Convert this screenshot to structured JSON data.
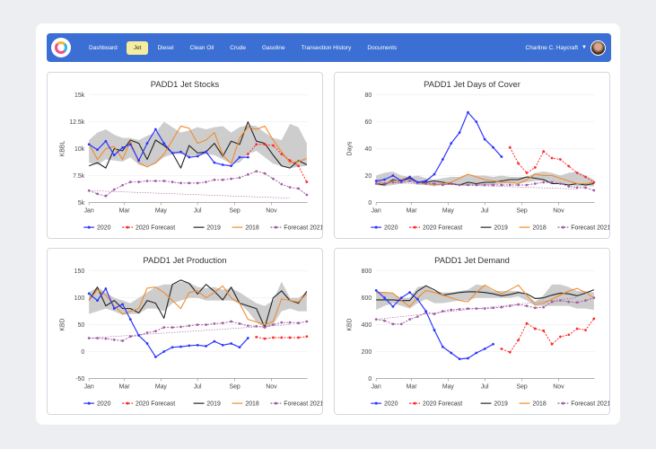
{
  "nav": {
    "items": [
      "Dashboard",
      "Jet",
      "Diesel",
      "Clean Oil",
      "Crude",
      "Gasoline",
      "Transection History",
      "Documents"
    ],
    "active": "Jet",
    "user": "Charline C. Haycraft",
    "brand_color": "#3b6fd3",
    "active_color": "#f4ec9f"
  },
  "legend": [
    "2020",
    "2020 Forecast",
    "2019",
    "2018",
    "Forecast 2021"
  ],
  "colors": {
    "2020": "#2b35ff",
    "2020 Forecast": "#ff2a2a",
    "2019": "#222222",
    "2018": "#f28a2a",
    "Forecast 2021": "#a25ca5",
    "band": "#c8c8c8"
  },
  "chart_data": [
    {
      "type": "line",
      "title": "PADD1 Jet Stocks",
      "ylabel": "KBBL",
      "xlabel": "",
      "ylim": [
        5000,
        15000
      ],
      "yticks": [
        5000,
        7500,
        10000,
        12500,
        15000
      ],
      "ytick_labels": [
        "5k",
        "7.5k",
        "10k",
        "12.5k",
        "15k"
      ],
      "xtick_labels": [
        "Jan",
        "Mar",
        "May",
        "Jul",
        "Sep",
        "Nov"
      ],
      "x": [
        "Jan 1",
        "Jan 15",
        "Jan 29",
        "Feb 12",
        "Feb 26",
        "Mar 11",
        "Mar 25",
        "Apr 8",
        "Apr 22",
        "May 6",
        "May 20",
        "Jun 3",
        "Jun 17",
        "Jul 1",
        "Jul 15",
        "Jul 29",
        "Aug 12",
        "Aug 26",
        "Sep 9",
        "Sep 23",
        "Oct 7",
        "Oct 21",
        "Nov 4",
        "Nov 18",
        "Dec 2",
        "Dec 16",
        "Dec 30"
      ],
      "series": [
        {
          "name": "2020",
          "values": [
            10400,
            9900,
            10700,
            9400,
            10100,
            10400,
            8900,
            10500,
            11800,
            10500,
            9600,
            9700,
            9200,
            9300,
            9700,
            8700,
            8500,
            8400,
            9200,
            9200,
            null,
            null,
            null,
            null,
            null,
            null,
            null
          ]
        },
        {
          "name": "2020 Forecast",
          "values": [
            null,
            null,
            null,
            null,
            null,
            null,
            null,
            null,
            null,
            null,
            null,
            null,
            null,
            null,
            null,
            null,
            null,
            null,
            null,
            9500,
            10400,
            10400,
            10300,
            9500,
            8900,
            8400,
            6900
          ]
        },
        {
          "name": "2019",
          "values": [
            8400,
            8700,
            8200,
            10000,
            9800,
            10800,
            10500,
            9000,
            10800,
            10300,
            9600,
            8200,
            10300,
            9600,
            9700,
            10500,
            9300,
            10700,
            10400,
            12500,
            10700,
            10500,
            9400,
            8400,
            8200,
            8900,
            8500
          ]
        },
        {
          "name": "2018",
          "values": [
            10500,
            9000,
            10000,
            10200,
            9000,
            10700,
            8700,
            8300,
            8700,
            9500,
            10800,
            12100,
            11900,
            10500,
            10800,
            11500,
            9400,
            8600,
            11000,
            12000,
            11800,
            12100,
            10800,
            9700,
            8700,
            8800,
            9100
          ]
        },
        {
          "name": "Forecast 2021",
          "values": [
            6100,
            5800,
            5600,
            6200,
            6600,
            6900,
            6900,
            7000,
            7000,
            7000,
            6900,
            6800,
            6800,
            6800,
            6900,
            7100,
            7100,
            7200,
            7300,
            7600,
            7900,
            7700,
            7200,
            6700,
            6400,
            6300,
            5700
          ]
        }
      ],
      "band_high": [
        10800,
        11500,
        11800,
        11300,
        11000,
        11000,
        10800,
        11200,
        11500,
        12500,
        12000,
        11500,
        11700,
        12000,
        11800,
        12000,
        12100,
        11500,
        12000,
        12200,
        12100,
        11500,
        11000,
        10800,
        12300,
        12000,
        10500
      ],
      "band_low": [
        8700,
        8500,
        9000,
        8900,
        8800,
        9200,
        8500,
        8300,
        8600,
        9200,
        9500,
        9500,
        9300,
        9400,
        9500,
        9400,
        9000,
        8600,
        8700,
        9500,
        9800,
        9200,
        8600,
        8400,
        8200,
        8300,
        8400
      ],
      "trend": [
        6100,
        5400
      ]
    },
    {
      "type": "line",
      "title": "PADD1 Jet Days of Cover",
      "ylabel": "Days",
      "xlabel": "",
      "ylim": [
        0,
        80
      ],
      "yticks": [
        0,
        20,
        40,
        60,
        80
      ],
      "ytick_labels": [
        "0",
        "20",
        "40",
        "60",
        "80"
      ],
      "xtick_labels": [
        "Jan",
        "Mar",
        "May",
        "Jul",
        "Sep",
        "Nov"
      ],
      "x": [
        "Jan 1",
        "Jan 15",
        "Jan 29",
        "Feb 12",
        "Feb 26",
        "Mar 11",
        "Mar 25",
        "Apr 8",
        "Apr 22",
        "May 6",
        "May 20",
        "Jun 3",
        "Jun 17",
        "Jul 1",
        "Jul 15",
        "Jul 29",
        "Aug 12",
        "Aug 26",
        "Sep 9",
        "Sep 23",
        "Oct 7",
        "Oct 21",
        "Nov 4",
        "Nov 18",
        "Dec 2",
        "Dec 16",
        "Dec 30"
      ],
      "series": [
        {
          "name": "2020",
          "values": [
            16,
            17,
            20,
            16,
            19,
            15,
            16,
            21,
            32,
            44,
            52,
            67,
            60,
            47,
            41,
            34,
            null,
            null,
            null,
            null,
            null,
            null,
            null,
            null,
            null,
            null,
            null
          ]
        },
        {
          "name": "2020 Forecast",
          "values": [
            null,
            null,
            null,
            null,
            null,
            null,
            null,
            null,
            null,
            null,
            null,
            null,
            null,
            null,
            null,
            null,
            41,
            29,
            22,
            26,
            38,
            33,
            32,
            27,
            22,
            19,
            15
          ]
        },
        {
          "name": "2019",
          "values": [
            14,
            13,
            17,
            16,
            18,
            15,
            15,
            16,
            15,
            14,
            13,
            15,
            14,
            15,
            15,
            16,
            17,
            17,
            19,
            18,
            17,
            14,
            14,
            13,
            14,
            13,
            14
          ]
        },
        {
          "name": "2018",
          "values": [
            16,
            14,
            16,
            17,
            19,
            15,
            14,
            13,
            14,
            15,
            18,
            21,
            19,
            17,
            16,
            15,
            15,
            14,
            17,
            21,
            20,
            20,
            18,
            16,
            14,
            14,
            15
          ]
        },
        {
          "name": "Forecast 2021",
          "values": [
            14,
            14,
            15,
            15,
            16,
            15,
            14,
            14,
            13,
            14,
            13,
            13,
            13,
            13,
            13,
            13,
            13,
            13,
            13,
            14,
            15,
            15,
            14,
            12,
            11,
            11,
            9
          ]
        }
      ],
      "band_high": [
        20,
        22,
        23,
        20,
        19,
        20,
        18,
        17,
        18,
        19,
        19,
        21,
        20,
        20,
        19,
        20,
        19,
        19,
        19,
        22,
        23,
        22,
        20,
        22,
        23,
        20,
        17
      ],
      "band_low": [
        13,
        12,
        13,
        14,
        15,
        13,
        13,
        12,
        13,
        13,
        13,
        13,
        13,
        13,
        13,
        14,
        14,
        14,
        15,
        16,
        16,
        15,
        14,
        13,
        12,
        12,
        12
      ],
      "trend": [
        15,
        10
      ]
    },
    {
      "type": "line",
      "title": "PADD1 Jet Production",
      "ylabel": "KBD",
      "xlabel": "",
      "ylim": [
        -50,
        150
      ],
      "yticks": [
        -50,
        0,
        50,
        100,
        150
      ],
      "ytick_labels": [
        "-50",
        "0",
        "50",
        "100",
        "150"
      ],
      "xtick_labels": [
        "Jan",
        "Mar",
        "May",
        "Jul",
        "Sep",
        "Nov"
      ],
      "x": [
        "Jan 1",
        "Jan 15",
        "Jan 29",
        "Feb 12",
        "Feb 26",
        "Mar 11",
        "Mar 25",
        "Apr 8",
        "Apr 22",
        "May 6",
        "May 20",
        "Jun 3",
        "Jun 17",
        "Jul 1",
        "Jul 15",
        "Jul 29",
        "Aug 12",
        "Aug 26",
        "Sep 9",
        "Sep 23",
        "Oct 7",
        "Oct 21",
        "Nov 4",
        "Nov 18",
        "Dec 2",
        "Dec 16",
        "Dec 30"
      ],
      "series": [
        {
          "name": "2020",
          "values": [
            108,
            95,
            117,
            80,
            88,
            60,
            30,
            15,
            -10,
            0,
            8,
            9,
            11,
            12,
            10,
            19,
            12,
            15,
            8,
            25,
            null,
            null,
            null,
            null,
            null,
            null,
            null
          ]
        },
        {
          "name": "2020 Forecast",
          "values": [
            null,
            null,
            null,
            null,
            null,
            null,
            null,
            null,
            null,
            null,
            null,
            null,
            null,
            null,
            null,
            null,
            null,
            null,
            null,
            null,
            27,
            24,
            26,
            26,
            26,
            26,
            28
          ]
        },
        {
          "name": "2019",
          "values": [
            95,
            120,
            85,
            95,
            80,
            80,
            72,
            95,
            90,
            62,
            125,
            133,
            127,
            107,
            125,
            112,
            96,
            120,
            90,
            85,
            80,
            45,
            100,
            113,
            95,
            90,
            112
          ]
        },
        {
          "name": "2018",
          "values": [
            95,
            115,
            105,
            85,
            70,
            75,
            80,
            118,
            120,
            110,
            95,
            80,
            110,
            113,
            100,
            110,
            122,
            100,
            90,
            60,
            55,
            50,
            56,
            98,
            95,
            92,
            108
          ]
        },
        {
          "name": "Forecast 2021",
          "values": [
            25,
            25,
            24,
            22,
            20,
            28,
            30,
            35,
            38,
            45,
            45,
            46,
            48,
            50,
            50,
            52,
            53,
            56,
            52,
            48,
            47,
            45,
            50,
            54,
            54,
            53,
            56
          ]
        }
      ],
      "band_high": [
        110,
        120,
        110,
        100,
        95,
        90,
        100,
        110,
        120,
        125,
        125,
        130,
        128,
        120,
        118,
        120,
        115,
        118,
        110,
        100,
        90,
        85,
        95,
        130,
        100,
        100,
        110
      ],
      "band_low": [
        70,
        75,
        80,
        75,
        68,
        70,
        70,
        80,
        80,
        75,
        90,
        95,
        100,
        100,
        95,
        95,
        95,
        95,
        90,
        75,
        55,
        45,
        50,
        75,
        80,
        75,
        75
      ],
      "trend": [
        25,
        50
      ]
    },
    {
      "type": "line",
      "title": "PADD1 Jet Demand",
      "ylabel": "KBD",
      "xlabel": "",
      "ylim": [
        0,
        800
      ],
      "yticks": [
        0,
        200,
        400,
        600,
        800
      ],
      "ytick_labels": [
        "0",
        "200",
        "400",
        "600",
        "800"
      ],
      "xtick_labels": [
        "Jan",
        "Mar",
        "May",
        "Jul",
        "Sep",
        "Nov"
      ],
      "x": [
        "Jan 1",
        "Jan 15",
        "Jan 29",
        "Feb 12",
        "Feb 26",
        "Mar 11",
        "Mar 25",
        "Apr 8",
        "Apr 22",
        "May 6",
        "May 20",
        "Jun 3",
        "Jun 17",
        "Jul 1",
        "Jul 15",
        "Jul 29",
        "Aug 12",
        "Aug 26",
        "Sep 9",
        "Sep 23",
        "Oct 7",
        "Oct 21",
        "Nov 4",
        "Nov 18",
        "Dec 2",
        "Dec 16",
        "Dec 30"
      ],
      "series": [
        {
          "name": "2020",
          "values": [
            655,
            600,
            535,
            600,
            640,
            590,
            500,
            360,
            235,
            190,
            145,
            150,
            190,
            220,
            255,
            null,
            null,
            null,
            null,
            null,
            null,
            null,
            null,
            null,
            null,
            null,
            null
          ]
        },
        {
          "name": "2020 Forecast",
          "values": [
            null,
            null,
            null,
            null,
            null,
            null,
            null,
            null,
            null,
            null,
            null,
            null,
            null,
            null,
            null,
            220,
            195,
            285,
            410,
            370,
            355,
            255,
            310,
            325,
            370,
            360,
            445
          ]
        },
        {
          "name": "2019",
          "values": [
            585,
            585,
            585,
            580,
            580,
            650,
            690,
            660,
            620,
            630,
            640,
            645,
            645,
            640,
            630,
            615,
            625,
            640,
            630,
            595,
            600,
            620,
            635,
            630,
            615,
            635,
            660
          ]
        },
        {
          "name": "2018",
          "values": [
            640,
            640,
            635,
            580,
            535,
            600,
            655,
            640,
            620,
            600,
            580,
            570,
            640,
            695,
            660,
            630,
            660,
            695,
            620,
            550,
            560,
            590,
            620,
            650,
            670,
            640,
            600
          ]
        },
        {
          "name": "Forecast 2021",
          "values": [
            440,
            430,
            405,
            405,
            440,
            460,
            490,
            480,
            500,
            510,
            515,
            520,
            520,
            520,
            525,
            530,
            540,
            550,
            540,
            525,
            530,
            570,
            580,
            570,
            565,
            580,
            600
          ]
        }
      ],
      "band_high": [
        650,
        640,
        630,
        600,
        600,
        680,
        690,
        650,
        640,
        640,
        650,
        660,
        700,
        690,
        650,
        650,
        650,
        650,
        620,
        570,
        620,
        700,
        700,
        680,
        650,
        650,
        640
      ],
      "band_low": [
        510,
        540,
        560,
        540,
        520,
        560,
        590,
        560,
        560,
        570,
        580,
        580,
        600,
        600,
        600,
        600,
        600,
        610,
        580,
        540,
        540,
        540,
        540,
        540,
        520,
        520,
        510
      ],
      "trend": [
        440,
        600
      ]
    }
  ]
}
